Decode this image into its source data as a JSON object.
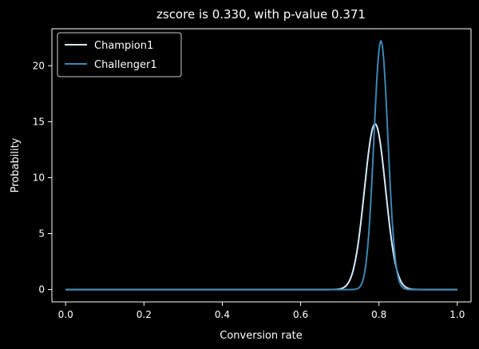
{
  "chart_data": {
    "type": "line",
    "title": "zscore is 0.330, with p-value 0.371",
    "xlabel": "Conversion rate",
    "ylabel": "Probability",
    "xlim": [
      -0.035,
      1.035
    ],
    "ylim": [
      -1.1,
      23.3
    ],
    "xticks": [
      0.0,
      0.2,
      0.4,
      0.6,
      0.8,
      1.0
    ],
    "xtick_labels": [
      "0.0",
      "0.2",
      "0.4",
      "0.6",
      "0.8",
      "1.0"
    ],
    "yticks": [
      0,
      5,
      10,
      15,
      20
    ],
    "ytick_labels": [
      "0",
      "5",
      "10",
      "15",
      "20"
    ],
    "grid": false,
    "legend_position": "top-left",
    "series": [
      {
        "name": "Champion1",
        "color": "#d6eaf8",
        "distribution": "normal",
        "mean": 0.79,
        "peak": 14.8
      },
      {
        "name": "Challenger1",
        "color": "#3d86b3",
        "distribution": "normal",
        "mean": 0.805,
        "peak": 22.2
      }
    ]
  }
}
